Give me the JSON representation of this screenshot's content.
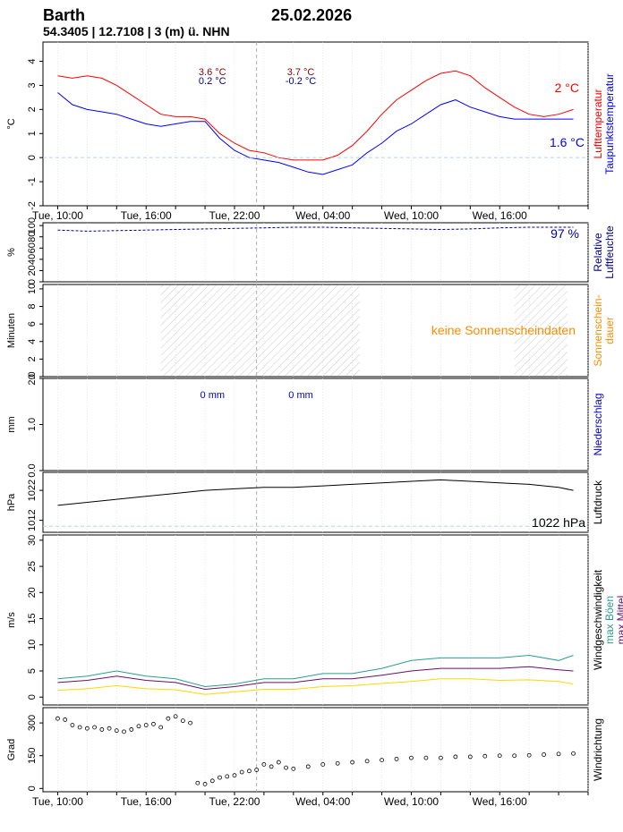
{
  "header": {
    "station": "Barth",
    "date": "25.02.2026",
    "location": "54.3405 | 12.7108 | 3 (m) ü. NHN"
  },
  "colors": {
    "temp": "#ff0000",
    "dew": "#0000ff",
    "humidity": "#00008b",
    "sunshine": "#ff8c00",
    "precip": "#0000cd",
    "pressure": "#000000",
    "gust": "#2a9d8f",
    "wind_max": "#6a0d6a",
    "wind_min": "#ffd700",
    "winddir": "#000000",
    "guide": "#add8e6",
    "now_line": "#b0b0b0"
  },
  "time_axis": {
    "labels": [
      "Tue, 10:00",
      "Tue, 16:00",
      "Tue, 22:00",
      "Wed, 04:00",
      "Wed, 10:00",
      "Wed, 16:00"
    ],
    "label_hours": [
      0,
      6,
      12,
      18,
      24,
      30
    ],
    "hour_range": [
      -1,
      36
    ],
    "now_hour": 13.5
  },
  "chart_data": [
    {
      "id": "temperature",
      "type": "line",
      "ylabel": "°C",
      "ylim": [
        -2,
        4.8
      ],
      "yticks": [
        -2,
        -1,
        0,
        1,
        2,
        3,
        4
      ],
      "ytick_labels": [
        "-2",
        "-1",
        "0",
        "1",
        "2",
        "3",
        "4"
      ],
      "right_labels": [
        "Lufttemperatur",
        "Taupunktstemperatur"
      ],
      "series": [
        {
          "name": "Lufttemperatur",
          "x": [
            0,
            1,
            2,
            3,
            4,
            5,
            6,
            7,
            8,
            9,
            10,
            11,
            12,
            13,
            14,
            15,
            16,
            17,
            18,
            19,
            20,
            21,
            22,
            23,
            24,
            25,
            26,
            27,
            28,
            29,
            30,
            31,
            32,
            33,
            34,
            35
          ],
          "y": [
            3.4,
            3.3,
            3.4,
            3.3,
            3.0,
            2.6,
            2.2,
            1.8,
            1.7,
            1.7,
            1.6,
            1.0,
            0.6,
            0.3,
            0.2,
            0.0,
            -0.1,
            -0.1,
            -0.1,
            0.1,
            0.5,
            1.1,
            1.8,
            2.4,
            2.8,
            3.2,
            3.5,
            3.6,
            3.4,
            2.9,
            2.5,
            2.1,
            1.8,
            1.7,
            1.8,
            2.0
          ]
        },
        {
          "name": "Taupunktstemperatur",
          "x": [
            0,
            1,
            2,
            3,
            4,
            5,
            6,
            7,
            8,
            9,
            10,
            11,
            12,
            13,
            14,
            15,
            16,
            17,
            18,
            19,
            20,
            21,
            22,
            23,
            24,
            25,
            26,
            27,
            28,
            29,
            30,
            31,
            32,
            33,
            34,
            35
          ],
          "y": [
            2.7,
            2.2,
            2.0,
            1.9,
            1.8,
            1.6,
            1.4,
            1.3,
            1.4,
            1.5,
            1.5,
            0.8,
            0.3,
            0.0,
            -0.1,
            -0.2,
            -0.4,
            -0.6,
            -0.7,
            -0.5,
            -0.3,
            0.2,
            0.6,
            1.1,
            1.4,
            1.8,
            2.2,
            2.4,
            2.1,
            1.9,
            1.7,
            1.6,
            1.6,
            1.6,
            1.6,
            1.6
          ]
        }
      ],
      "annotations": [
        {
          "hour": 10.5,
          "line1": "3.6 °C",
          "line2": "0.2 °C"
        },
        {
          "hour": 16.5,
          "line1": "3.7 °C",
          "line2": "-0.2 °C"
        }
      ],
      "end_labels": [
        "2 °C",
        "1.6 °C"
      ]
    },
    {
      "id": "humidity",
      "type": "line",
      "ylabel": "%",
      "ylim": [
        0,
        105
      ],
      "yticks": [
        0,
        20,
        40,
        60,
        80,
        100
      ],
      "ytick_labels": [
        "0",
        "20",
        "40",
        "60",
        "80",
        "100"
      ],
      "right_labels": [
        "Relative",
        "Luftfeuchte"
      ],
      "series": [
        {
          "name": "Relative Luftfeuchte",
          "x": [
            0,
            2,
            4,
            6,
            8,
            10,
            12,
            14,
            16,
            18,
            20,
            22,
            24,
            26,
            28,
            30,
            32,
            34,
            35
          ],
          "y": [
            92,
            90,
            91,
            92,
            93,
            94,
            95,
            96,
            97,
            97,
            96,
            95,
            94,
            93,
            94,
            96,
            97,
            97,
            97
          ]
        }
      ],
      "end_label": "97 %"
    },
    {
      "id": "sunshine",
      "type": "area",
      "ylabel": "Minuten",
      "ylim": [
        0,
        10.5
      ],
      "yticks": [
        0,
        2,
        4,
        6,
        8,
        10
      ],
      "ytick_labels": [
        "0",
        "2",
        "4",
        "6",
        "8",
        "10"
      ],
      "right_labels": [
        "Sonnenschein-",
        "dauer"
      ],
      "night_hours": [
        [
          7,
          20.5
        ],
        [
          31,
          37
        ]
      ],
      "note": "keine Sonnenscheindaten"
    },
    {
      "id": "precipitation",
      "type": "bar",
      "ylabel": "mm",
      "ylim": [
        0,
        2
      ],
      "yticks": [
        0,
        1,
        2
      ],
      "ytick_labels": [
        "0.0",
        "1.0",
        "2.0"
      ],
      "right_labels": [
        "Niederschlag"
      ],
      "annotations": [
        {
          "hour": 10.5,
          "text": "0 mm"
        },
        {
          "hour": 16.5,
          "text": "0 mm"
        }
      ]
    },
    {
      "id": "pressure",
      "type": "line",
      "ylabel": "hPa",
      "ylim": [
        1008,
        1028
      ],
      "yticks": [
        1012,
        1022
      ],
      "ytick_labels": [
        "1012",
        "1022"
      ],
      "right_labels": [
        "Luftdruck"
      ],
      "series": [
        {
          "name": "Luftdruck",
          "x": [
            0,
            2,
            4,
            6,
            8,
            10,
            12,
            14,
            16,
            18,
            20,
            22,
            24,
            26,
            28,
            30,
            32,
            34,
            35
          ],
          "y": [
            1017,
            1018,
            1019,
            1020,
            1021,
            1022,
            1022.5,
            1023,
            1023,
            1023.5,
            1024,
            1024.5,
            1025,
            1025.5,
            1025,
            1024.5,
            1024,
            1023,
            1022
          ]
        }
      ],
      "end_label": "1022 hPa"
    },
    {
      "id": "wind",
      "type": "line",
      "ylabel": "m/s",
      "ylim": [
        -1.5,
        31
      ],
      "yticks": [
        0,
        5,
        10,
        15,
        20,
        25,
        30
      ],
      "ytick_labels": [
        "0",
        "5",
        "10",
        "15",
        "20",
        "25",
        "30"
      ],
      "right_labels": [
        "Windgeschwindigkeit",
        "max Böen",
        "max Mittel",
        "min Mittel"
      ],
      "series": [
        {
          "name": "max Böen",
          "x": [
            0,
            2,
            4,
            6,
            8,
            10,
            12,
            14,
            16,
            18,
            20,
            22,
            24,
            26,
            28,
            30,
            32,
            34,
            35
          ],
          "y": [
            3.5,
            4.0,
            5.0,
            4.0,
            3.5,
            2.0,
            2.5,
            3.5,
            3.5,
            4.5,
            4.5,
            5.5,
            7.0,
            7.5,
            7.5,
            7.5,
            8.0,
            7.0,
            8.0
          ]
        },
        {
          "name": "max Mittel",
          "x": [
            0,
            2,
            4,
            6,
            8,
            10,
            12,
            14,
            16,
            18,
            20,
            22,
            24,
            26,
            28,
            30,
            32,
            34,
            35
          ],
          "y": [
            2.8,
            3.2,
            4.0,
            3.2,
            2.8,
            1.5,
            2.0,
            2.8,
            2.8,
            3.5,
            3.5,
            4.2,
            5.0,
            5.5,
            5.5,
            5.5,
            5.8,
            5.2,
            5.0
          ]
        },
        {
          "name": "min Mittel",
          "x": [
            0,
            2,
            4,
            6,
            8,
            10,
            12,
            14,
            16,
            18,
            20,
            22,
            24,
            26,
            28,
            30,
            32,
            34,
            35
          ],
          "y": [
            1.3,
            1.6,
            2.2,
            1.6,
            1.4,
            0.5,
            1.0,
            1.5,
            1.5,
            2.0,
            2.2,
            2.6,
            3.0,
            3.5,
            3.5,
            3.2,
            3.3,
            3.0,
            2.5
          ]
        }
      ]
    },
    {
      "id": "winddirection",
      "type": "scatter",
      "ylabel": "Grad",
      "ylim": [
        -15,
        370
      ],
      "yticks": [
        0,
        150,
        300
      ],
      "ytick_labels": [
        "0",
        "150",
        "300"
      ],
      "right_labels": [
        "Windrichtung"
      ],
      "series": [
        {
          "name": "Windrichtung",
          "x": [
            0,
            0.5,
            1,
            1.5,
            2,
            2.5,
            3,
            3.5,
            4,
            4.5,
            5,
            5.5,
            6,
            6.5,
            7,
            7.5,
            8,
            8.5,
            9,
            9.5,
            10,
            10.5,
            11,
            11.5,
            12,
            12.5,
            13,
            13.5,
            14,
            14.5,
            15,
            15.5,
            16,
            17,
            18,
            19,
            20,
            21,
            22,
            23,
            24,
            25,
            26,
            27,
            28,
            29,
            30,
            31,
            32,
            33,
            34,
            35
          ],
          "y": [
            320,
            315,
            290,
            280,
            275,
            280,
            270,
            275,
            265,
            260,
            270,
            285,
            290,
            295,
            280,
            320,
            330,
            310,
            300,
            25,
            20,
            35,
            50,
            55,
            60,
            75,
            80,
            85,
            110,
            100,
            120,
            95,
            90,
            100,
            110,
            115,
            120,
            125,
            130,
            135,
            140,
            140,
            140,
            145,
            145,
            148,
            150,
            150,
            152,
            155,
            158,
            160
          ]
        }
      ]
    }
  ]
}
